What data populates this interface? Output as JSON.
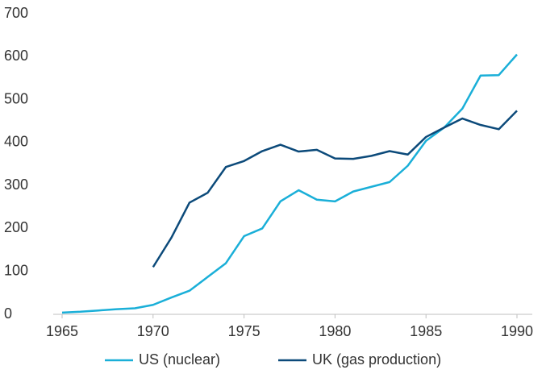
{
  "chart_data": {
    "type": "line",
    "x": [
      1965,
      1966,
      1967,
      1968,
      1969,
      1970,
      1971,
      1972,
      1973,
      1974,
      1975,
      1976,
      1977,
      1978,
      1979,
      1980,
      1981,
      1982,
      1983,
      1984,
      1985,
      1986,
      1987,
      1988,
      1989,
      1990
    ],
    "series": [
      {
        "name": "US (nuclear)",
        "color": "#1aafd8",
        "values": [
          4,
          6,
          9,
          12,
          14,
          22,
          39,
          55,
          87,
          119,
          182,
          200,
          263,
          289,
          267,
          263,
          286,
          297,
          308,
          346,
          404,
          435,
          479,
          556,
          557,
          605
        ]
      },
      {
        "name": "UK (gas production)",
        "color": "#0c4a7a",
        "values": [
          null,
          null,
          null,
          null,
          null,
          110,
          178,
          260,
          283,
          343,
          357,
          380,
          395,
          379,
          383,
          363,
          362,
          369,
          380,
          372,
          413,
          435,
          456,
          441,
          431,
          474
        ]
      }
    ],
    "xlim": [
      1965,
      1990
    ],
    "xticks": [
      1965,
      1970,
      1975,
      1980,
      1985,
      1990
    ],
    "ylim": [
      0,
      700
    ],
    "yticks": [
      0,
      100,
      200,
      300,
      400,
      500,
      600,
      700
    ],
    "legend": "bottom"
  }
}
